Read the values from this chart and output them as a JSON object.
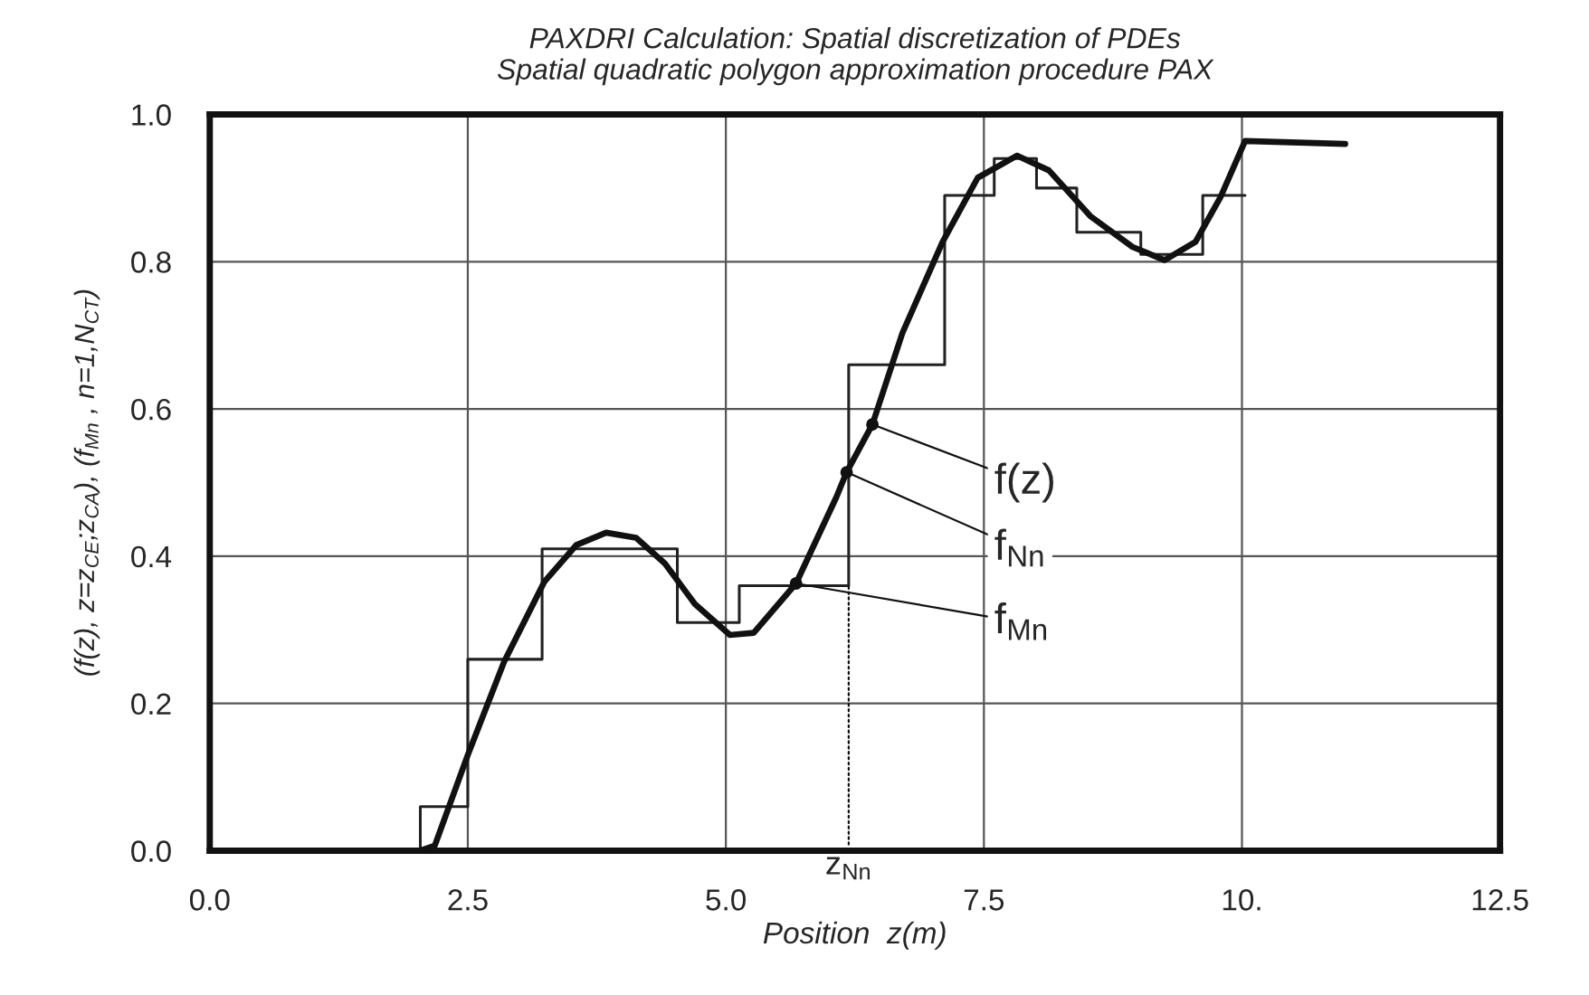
{
  "chart_data": {
    "type": "line",
    "title": "PAXDRI Calculation: Spatial discretization of PDEs\nSpatial quadratic polygon approximation procedure PAX",
    "xlabel": "Position  z(m)",
    "ylabel": "(f(z), z=z$_{CE}$;z$_{CA}$), (f$_{Mn}$ , n=1,N$_{CT}$)",
    "series": [
      {
        "color": "#111111",
        "x": [
          2.04,
          2.18,
          2.5,
          2.85,
          3.24,
          3.55,
          3.84,
          4.13,
          4.41,
          4.7,
          5.04,
          5.27,
          5.68,
          6.07,
          6.17,
          6.42,
          6.71,
          7.1,
          7.44,
          7.82,
          8.13,
          8.53,
          8.94,
          9.25,
          9.55,
          9.79,
          10.03,
          11.0
        ],
        "values": [
          0.0,
          0.007,
          0.13,
          0.256,
          0.365,
          0.415,
          0.432,
          0.425,
          0.39,
          0.335,
          0.293,
          0.296,
          0.363,
          0.48,
          0.514,
          0.579,
          0.703,
          0.827,
          0.914,
          0.944,
          0.924,
          0.862,
          0.82,
          0.802,
          0.827,
          0.887,
          0.964,
          0.96
        ]
      },
      {
        "type": "step",
        "color": "#222222",
        "x": [
          2.04,
          2.04,
          2.5,
          3.22,
          4.53,
          5.13,
          6.19,
          7.12,
          7.6,
          8.01,
          8.4,
          9.02,
          9.62,
          10.03
        ],
        "values": [
          0.0,
          0.06,
          0.26,
          0.41,
          0.31,
          0.36,
          0.66,
          0.89,
          0.94,
          0.9,
          0.84,
          0.81,
          0.89,
          0.89
        ]
      }
    ],
    "annotations": [
      {
        "text": "f(z)",
        "x": 6.42,
        "y": 0.579
      },
      {
        "text": "f$_{Nn}$",
        "x": 6.17,
        "y": 0.514
      },
      {
        "text": "f$_{Mn}$",
        "x": 5.68,
        "y": 0.363
      },
      {
        "text": "z$_{Nn}$",
        "x": 6.19,
        "y": 0.36
      }
    ],
    "xlim": [
      0,
      12.5
    ],
    "xticks": [
      {
        "value": 0,
        "label": "0.0"
      },
      2.5,
      {
        "value": 5,
        "label": "5.0"
      },
      7.5,
      {
        "value": 10,
        "label": "10."
      },
      12.5
    ],
    "ylim": [
      0,
      1.0
    ],
    "yticks": [
      {
        "value": 0,
        "label": "0.0"
      },
      0.2,
      0.4,
      0.6,
      0.8,
      {
        "value": 1,
        "label": "1.0"
      }
    ],
    "grid": true,
    "marker": "none",
    "line_style": "solid"
  }
}
